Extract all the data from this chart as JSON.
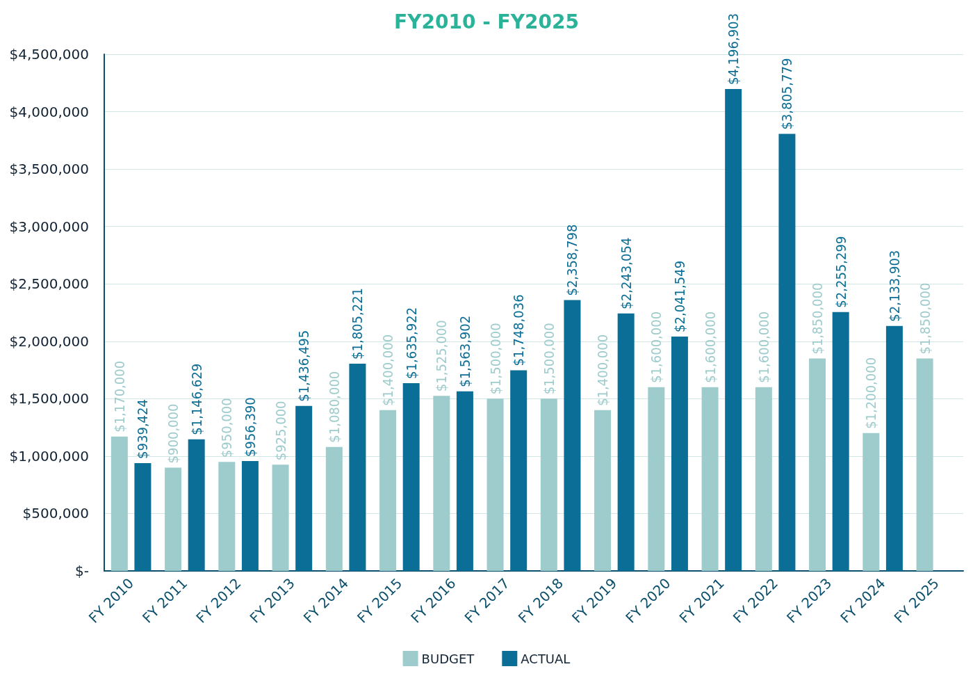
{
  "chart_data": {
    "type": "bar",
    "title": "FY2010 - FY2025",
    "categories": [
      "FY 2010",
      "FY 2011",
      "FY 2012",
      "FY 2013",
      "FY 2014",
      "FY 2015",
      "FY 2016",
      "FY 2017",
      "FY 2018",
      "FY 2019",
      "FY 2020",
      "FY 2021",
      "FY 2022",
      "FY 2023",
      "FY 2024",
      "FY 2025"
    ],
    "series": [
      {
        "name": "BUDGET",
        "color": "#9ecbcc",
        "values": [
          1170000,
          900000,
          950000,
          925000,
          1080000,
          1400000,
          1525000,
          1500000,
          1500000,
          1400000,
          1600000,
          1600000,
          1600000,
          1850000,
          1200000,
          1850000
        ],
        "value_labels": [
          "$1,170,000",
          "$900,000",
          "$950,000",
          "$925,000",
          "$1,080,000",
          "$1,400,000",
          "$1,525,000",
          "$1,500,000",
          "$1,500,000",
          "$1,400,000",
          "$1,600,000",
          "$1,600,000",
          "$1,600,000",
          "$1,850,000",
          "$1,200,000",
          "$1,850,000"
        ]
      },
      {
        "name": "ACTUAL",
        "color": "#0b6e96",
        "values": [
          939424,
          1146629,
          956390,
          1436495,
          1805221,
          1635922,
          1563902,
          1748036,
          2358798,
          2243054,
          2041549,
          4196903,
          3805779,
          2255299,
          2133903,
          null
        ],
        "value_labels": [
          "$939,424",
          "$1,146,629",
          "$956,390",
          "$1,436,495",
          "$1,805,221",
          "$1,635,922",
          "$1,563,902",
          "$1,748,036",
          "$2,358,798",
          "$2,243,054",
          "$2,041,549",
          "$4,196,903",
          "$3,805,779",
          "$2,255,299",
          "$2,133,903",
          null
        ]
      }
    ],
    "ylim": [
      0,
      4500000
    ],
    "yticks": [
      {
        "value": 0,
        "label": "$-"
      },
      {
        "value": 500000,
        "label": "$500,000"
      },
      {
        "value": 1000000,
        "label": "$1,000,000"
      },
      {
        "value": 1500000,
        "label": "$1,500,000"
      },
      {
        "value": 2000000,
        "label": "$2,000,000"
      },
      {
        "value": 2500000,
        "label": "$2,500,000"
      },
      {
        "value": 3000000,
        "label": "$3,000,000"
      },
      {
        "value": 3500000,
        "label": "$3,500,000"
      },
      {
        "value": 4000000,
        "label": "$4,000,000"
      },
      {
        "value": 4500000,
        "label": "$4,500,000"
      }
    ],
    "grid": "y",
    "legend": "bottom"
  }
}
